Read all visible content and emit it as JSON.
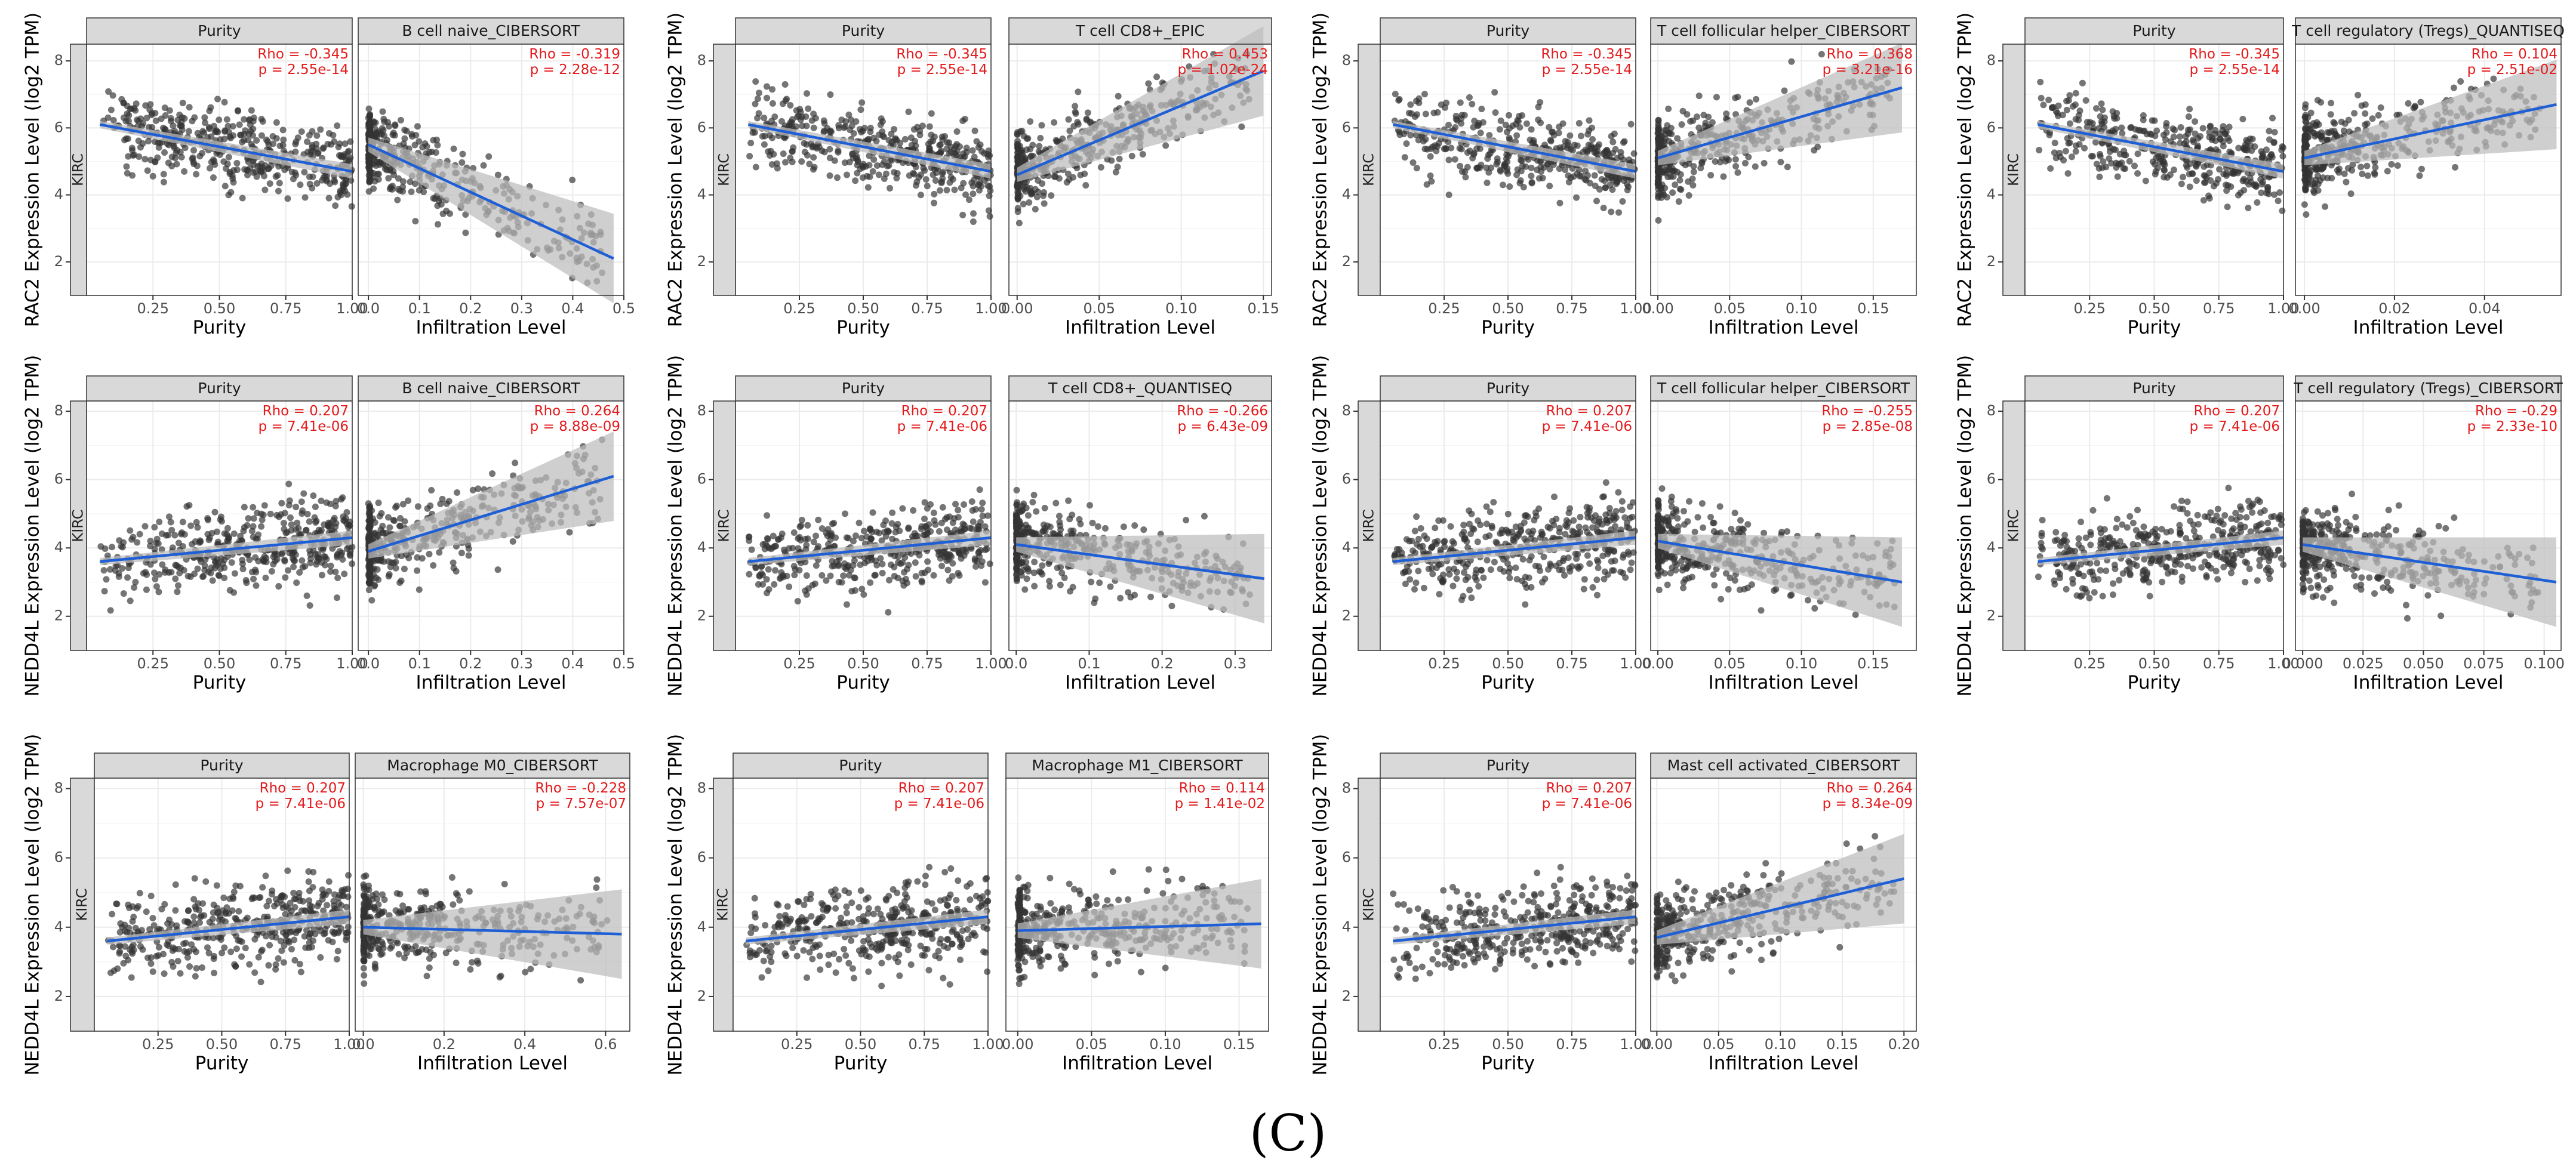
{
  "figure": {
    "panel_label": "(C)",
    "strip_label": "KIRC",
    "colors": {
      "point": "#333333",
      "fit_line": "#1f5fd6",
      "ci_band": "#bdbdbd",
      "strip_bg": "#d9d9d9",
      "grid": "#ebebeb",
      "stat_text": "#e41a1c"
    }
  },
  "chart_data": [
    {
      "type": "scatter",
      "ylabel": "RAC2 Expression Level (log2 TPM)",
      "ylim": [
        1,
        8.5
      ],
      "yticks": [
        2,
        4,
        6,
        8
      ],
      "left": {
        "title": "Purity",
        "xlabel": "Purity",
        "xlim": [
          0,
          1
        ],
        "xticks": [
          "0.25",
          "0.50",
          "0.75",
          "1.00"
        ],
        "xtick_values": [
          0.25,
          0.5,
          0.75,
          1.0
        ],
        "rho": "Rho = -0.345",
        "p": "p = 2.55e-14",
        "fit": [
          [
            0.05,
            6.1
          ],
          [
            1.0,
            4.7
          ]
        ]
      },
      "right": {
        "title": "B cell naive_CIBERSORT",
        "xlabel": "Infiltration Level",
        "xlim": [
          -0.02,
          0.5
        ],
        "xticks": [
          "0.0",
          "0.1",
          "0.2",
          "0.3",
          "0.4",
          "0.5"
        ],
        "xtick_values": [
          0,
          0.1,
          0.2,
          0.3,
          0.4,
          0.5
        ],
        "rho": "Rho = -0.319",
        "p": "p = 2.28e-12",
        "fit": [
          [
            0.0,
            5.5
          ],
          [
            0.48,
            2.1
          ]
        ]
      }
    },
    {
      "type": "scatter",
      "ylabel": "RAC2 Expression Level (log2 TPM)",
      "ylim": [
        1,
        8.5
      ],
      "yticks": [
        2,
        4,
        6,
        8
      ],
      "left": {
        "title": "Purity",
        "xlabel": "Purity",
        "xlim": [
          0,
          1
        ],
        "xticks": [
          "0.25",
          "0.50",
          "0.75",
          "1.00"
        ],
        "xtick_values": [
          0.25,
          0.5,
          0.75,
          1.0
        ],
        "rho": "Rho = -0.345",
        "p": "p = 2.55e-14",
        "fit": [
          [
            0.05,
            6.1
          ],
          [
            1.0,
            4.7
          ]
        ]
      },
      "right": {
        "title": "T cell CD8+_EPIC",
        "xlabel": "Infiltration Level",
        "xlim": [
          -0.005,
          0.155
        ],
        "xticks": [
          "0.00",
          "0.05",
          "0.10",
          "0.15"
        ],
        "xtick_values": [
          0,
          0.05,
          0.1,
          0.15
        ],
        "rho": "Rho = 0.453",
        "p": "p = 1.02e-24",
        "fit": [
          [
            0.0,
            4.6
          ],
          [
            0.15,
            7.7
          ]
        ]
      }
    },
    {
      "type": "scatter",
      "ylabel": "RAC2 Expression Level (log2 TPM)",
      "ylim": [
        1,
        8.5
      ],
      "yticks": [
        2,
        4,
        6,
        8
      ],
      "left": {
        "title": "Purity",
        "xlabel": "Purity",
        "xlim": [
          0,
          1
        ],
        "xticks": [
          "0.25",
          "0.50",
          "0.75",
          "1.00"
        ],
        "xtick_values": [
          0.25,
          0.5,
          0.75,
          1.0
        ],
        "rho": "Rho = -0.345",
        "p": "p = 2.55e-14",
        "fit": [
          [
            0.05,
            6.1
          ],
          [
            1.0,
            4.7
          ]
        ]
      },
      "right": {
        "title": "T cell follicular helper_CIBERSORT",
        "xlabel": "Infiltration Level",
        "xlim": [
          -0.005,
          0.18
        ],
        "xticks": [
          "0.00",
          "0.05",
          "0.10",
          "0.15"
        ],
        "xtick_values": [
          0,
          0.05,
          0.1,
          0.15
        ],
        "rho": "Rho = 0.368",
        "p": "p = 3.21e-16",
        "fit": [
          [
            0.0,
            5.1
          ],
          [
            0.17,
            7.2
          ]
        ]
      }
    },
    {
      "type": "scatter",
      "ylabel": "RAC2 Expression Level (log2 TPM)",
      "ylim": [
        1,
        8.5
      ],
      "yticks": [
        2,
        4,
        6,
        8
      ],
      "left": {
        "title": "Purity",
        "xlabel": "Purity",
        "xlim": [
          0,
          1
        ],
        "xticks": [
          "0.25",
          "0.50",
          "0.75",
          "1.00"
        ],
        "xtick_values": [
          0.25,
          0.5,
          0.75,
          1.0
        ],
        "rho": "Rho = -0.345",
        "p": "p = 2.55e-14",
        "fit": [
          [
            0.05,
            6.1
          ],
          [
            1.0,
            4.7
          ]
        ]
      },
      "right": {
        "title": "T cell regulatory (Tregs)_QUANTISEQ",
        "xlabel": "Infiltration Level",
        "xlim": [
          -0.002,
          0.057
        ],
        "xticks": [
          "0.00",
          "0.02",
          "0.04"
        ],
        "xtick_values": [
          0,
          0.02,
          0.04
        ],
        "rho": "Rho = 0.104",
        "p": "p = 2.51e-02",
        "fit": [
          [
            0.0,
            5.1
          ],
          [
            0.056,
            6.7
          ]
        ]
      }
    },
    {
      "type": "scatter",
      "ylabel": "NEDD4L Expression Level (log2 TPM)",
      "ylim": [
        1,
        8.3
      ],
      "yticks": [
        2,
        4,
        6,
        8
      ],
      "left": {
        "title": "Purity",
        "xlabel": "Purity",
        "xlim": [
          0,
          1
        ],
        "xticks": [
          "0.25",
          "0.50",
          "0.75",
          "1.00"
        ],
        "xtick_values": [
          0.25,
          0.5,
          0.75,
          1.0
        ],
        "rho": "Rho = 0.207",
        "p": "p = 7.41e-06",
        "fit": [
          [
            0.05,
            3.6
          ],
          [
            1.0,
            4.3
          ]
        ]
      },
      "right": {
        "title": "B cell naive_CIBERSORT",
        "xlabel": "Infiltration Level",
        "xlim": [
          -0.02,
          0.5
        ],
        "xticks": [
          "0.0",
          "0.1",
          "0.2",
          "0.3",
          "0.4",
          "0.5"
        ],
        "xtick_values": [
          0,
          0.1,
          0.2,
          0.3,
          0.4,
          0.5
        ],
        "rho": "Rho = 0.264",
        "p": "p = 8.88e-09",
        "fit": [
          [
            0.0,
            3.9
          ],
          [
            0.48,
            6.1
          ]
        ]
      }
    },
    {
      "type": "scatter",
      "ylabel": "NEDD4L Expression Level (log2 TPM)",
      "ylim": [
        1,
        8.3
      ],
      "yticks": [
        2,
        4,
        6,
        8
      ],
      "left": {
        "title": "Purity",
        "xlabel": "Purity",
        "xlim": [
          0,
          1
        ],
        "xticks": [
          "0.25",
          "0.50",
          "0.75",
          "1.00"
        ],
        "xtick_values": [
          0.25,
          0.5,
          0.75,
          1.0
        ],
        "rho": "Rho = 0.207",
        "p": "p = 7.41e-06",
        "fit": [
          [
            0.05,
            3.6
          ],
          [
            1.0,
            4.3
          ]
        ]
      },
      "right": {
        "title": "T cell CD8+_QUANTISEQ",
        "xlabel": "Infiltration Level",
        "xlim": [
          -0.01,
          0.35
        ],
        "xticks": [
          "0.0",
          "0.1",
          "0.2",
          "0.3"
        ],
        "xtick_values": [
          0,
          0.1,
          0.2,
          0.3
        ],
        "rho": "Rho = -0.266",
        "p": "p = 6.43e-09",
        "fit": [
          [
            0.0,
            4.1
          ],
          [
            0.34,
            3.1
          ]
        ]
      }
    },
    {
      "type": "scatter",
      "ylabel": "NEDD4L Expression Level (log2 TPM)",
      "ylim": [
        1,
        8.3
      ],
      "yticks": [
        2,
        4,
        6,
        8
      ],
      "left": {
        "title": "Purity",
        "xlabel": "Purity",
        "xlim": [
          0,
          1
        ],
        "xticks": [
          "0.25",
          "0.50",
          "0.75",
          "1.00"
        ],
        "xtick_values": [
          0.25,
          0.5,
          0.75,
          1.0
        ],
        "rho": "Rho = 0.207",
        "p": "p = 7.41e-06",
        "fit": [
          [
            0.05,
            3.6
          ],
          [
            1.0,
            4.3
          ]
        ]
      },
      "right": {
        "title": "T cell follicular helper_CIBERSORT",
        "xlabel": "Infiltration Level",
        "xlim": [
          -0.005,
          0.18
        ],
        "xticks": [
          "0.00",
          "0.05",
          "0.10",
          "0.15"
        ],
        "xtick_values": [
          0,
          0.05,
          0.1,
          0.15
        ],
        "rho": "Rho = -0.255",
        "p": "p = 2.85e-08",
        "fit": [
          [
            0.0,
            4.2
          ],
          [
            0.17,
            3.0
          ]
        ]
      }
    },
    {
      "type": "scatter",
      "ylabel": "NEDD4L Expression Level (log2 TPM)",
      "ylim": [
        1,
        8.3
      ],
      "yticks": [
        2,
        4,
        6,
        8
      ],
      "left": {
        "title": "Purity",
        "xlabel": "Purity",
        "xlim": [
          0,
          1
        ],
        "xticks": [
          "0.25",
          "0.50",
          "0.75",
          "1.00"
        ],
        "xtick_values": [
          0.25,
          0.5,
          0.75,
          1.0
        ],
        "rho": "Rho = 0.207",
        "p": "p = 7.41e-06",
        "fit": [
          [
            0.05,
            3.6
          ],
          [
            1.0,
            4.3
          ]
        ]
      },
      "right": {
        "title": "T cell regulatory (Tregs)_CIBERSORT",
        "xlabel": "Infiltration Level",
        "xlim": [
          -0.003,
          0.107
        ],
        "xticks": [
          "0.000",
          "0.025",
          "0.050",
          "0.075",
          "0.100"
        ],
        "xtick_values": [
          0,
          0.025,
          0.05,
          0.075,
          0.1
        ],
        "rho": "Rho = -0.29",
        "p": "p = 2.33e-10",
        "fit": [
          [
            0.0,
            4.1
          ],
          [
            0.105,
            3.0
          ]
        ]
      }
    },
    {
      "type": "scatter",
      "ylabel": "NEDD4L Expression Level (log2 TPM)",
      "ylim": [
        1,
        8.3
      ],
      "yticks": [
        2,
        4,
        6,
        8
      ],
      "left": {
        "title": "Purity",
        "xlabel": "Purity",
        "xlim": [
          0,
          1
        ],
        "xticks": [
          "0.25",
          "0.50",
          "0.75",
          "1.00"
        ],
        "xtick_values": [
          0.25,
          0.5,
          0.75,
          1.0
        ],
        "rho": "Rho = 0.207",
        "p": "p = 7.41e-06",
        "fit": [
          [
            0.05,
            3.6
          ],
          [
            1.0,
            4.3
          ]
        ]
      },
      "right": {
        "title": "Macrophage M0_CIBERSORT",
        "xlabel": "Infiltration Level",
        "xlim": [
          -0.02,
          0.66
        ],
        "xticks": [
          "0.0",
          "0.2",
          "0.4",
          "0.6"
        ],
        "xtick_values": [
          0,
          0.2,
          0.4,
          0.6
        ],
        "rho": "Rho = -0.228",
        "p": "p = 7.57e-07",
        "fit": [
          [
            0.0,
            4.0
          ],
          [
            0.64,
            3.8
          ]
        ]
      }
    },
    {
      "type": "scatter",
      "ylabel": "NEDD4L Expression Level (log2 TPM)",
      "ylim": [
        1,
        8.3
      ],
      "yticks": [
        2,
        4,
        6,
        8
      ],
      "left": {
        "title": "Purity",
        "xlabel": "Purity",
        "xlim": [
          0,
          1
        ],
        "xticks": [
          "0.25",
          "0.50",
          "0.75",
          "1.00"
        ],
        "xtick_values": [
          0.25,
          0.5,
          0.75,
          1.0
        ],
        "rho": "Rho = 0.207",
        "p": "p = 7.41e-06",
        "fit": [
          [
            0.05,
            3.6
          ],
          [
            1.0,
            4.3
          ]
        ]
      },
      "right": {
        "title": "Macrophage M1_CIBERSORT",
        "xlabel": "Infiltration Level",
        "xlim": [
          -0.008,
          0.17
        ],
        "xticks": [
          "0.00",
          "0.05",
          "0.10",
          "0.15"
        ],
        "xtick_values": [
          0,
          0.05,
          0.1,
          0.15
        ],
        "rho": "Rho = 0.114",
        "p": "p = 1.41e-02",
        "fit": [
          [
            0.0,
            3.9
          ],
          [
            0.165,
            4.1
          ]
        ]
      }
    },
    {
      "type": "scatter",
      "ylabel": "NEDD4L Expression Level (log2 TPM)",
      "ylim": [
        1,
        8.3
      ],
      "yticks": [
        2,
        4,
        6,
        8
      ],
      "left": {
        "title": "Purity",
        "xlabel": "Purity",
        "xlim": [
          0,
          1
        ],
        "xticks": [
          "0.25",
          "0.50",
          "0.75",
          "1.00"
        ],
        "xtick_values": [
          0.25,
          0.5,
          0.75,
          1.0
        ],
        "rho": "Rho = 0.207",
        "p": "p = 7.41e-06",
        "fit": [
          [
            0.05,
            3.6
          ],
          [
            1.0,
            4.3
          ]
        ]
      },
      "right": {
        "title": "Mast cell activated_CIBERSORT",
        "xlabel": "Infiltration Level",
        "xlim": [
          -0.005,
          0.21
        ],
        "xticks": [
          "0.00",
          "0.05",
          "0.10",
          "0.15",
          "0.20"
        ],
        "xtick_values": [
          0,
          0.05,
          0.1,
          0.15,
          0.2
        ],
        "rho": "Rho = 0.264",
        "p": "p = 8.34e-09",
        "fit": [
          [
            0.0,
            3.7
          ],
          [
            0.2,
            5.4
          ]
        ]
      }
    }
  ]
}
